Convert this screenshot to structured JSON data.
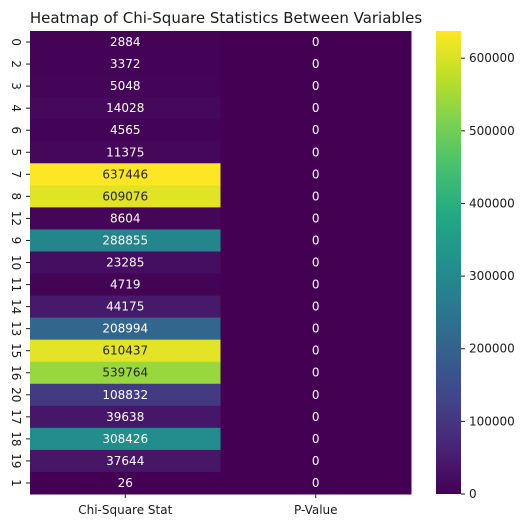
{
  "chart_data": {
    "type": "heatmap",
    "title": "Heatmap of Chi-Square Statistics Between Variables",
    "columns": [
      "Chi-Square Stat",
      "P-Value"
    ],
    "rows": [
      "0",
      "2",
      "3",
      "4",
      "6",
      "5",
      "7",
      "8",
      "12",
      "9",
      "10",
      "11",
      "14",
      "13",
      "15",
      "16",
      "20",
      "17",
      "18",
      "19",
      "1"
    ],
    "values": [
      [
        2884,
        0
      ],
      [
        3372,
        0
      ],
      [
        5048,
        0
      ],
      [
        14028,
        0
      ],
      [
        4565,
        0
      ],
      [
        11375,
        0
      ],
      [
        637446,
        0
      ],
      [
        609076,
        0
      ],
      [
        8604,
        0
      ],
      [
        288855,
        0
      ],
      [
        23285,
        0
      ],
      [
        4719,
        0
      ],
      [
        44175,
        0
      ],
      [
        208994,
        0
      ],
      [
        610437,
        0
      ],
      [
        539764,
        0
      ],
      [
        108832,
        0
      ],
      [
        39638,
        0
      ],
      [
        308426,
        0
      ],
      [
        37644,
        0
      ],
      [
        26,
        0
      ]
    ],
    "colormap": "viridis",
    "colorbar": {
      "range": [
        0,
        637446
      ],
      "ticks": [
        0,
        100000,
        200000,
        300000,
        400000,
        500000,
        600000
      ],
      "tick_labels": [
        "0",
        "100000",
        "200000",
        "300000",
        "400000",
        "500000",
        "600000"
      ]
    },
    "annotations": true
  }
}
